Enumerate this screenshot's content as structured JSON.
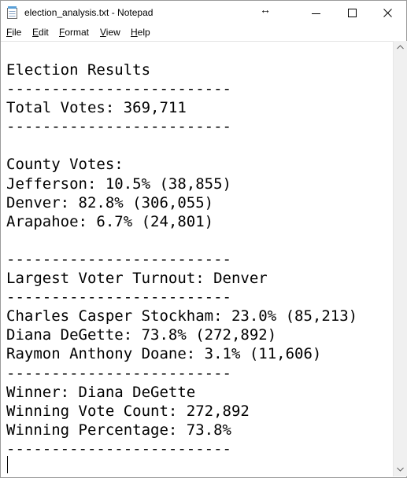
{
  "window": {
    "title": "election_analysis.txt - Notepad",
    "icons": {
      "app": "notepad-icon",
      "minimize": "minimize-icon",
      "maximize": "maximize-icon",
      "close": "close-icon",
      "resize": "resize-cursor-icon"
    },
    "resize_glyph": "↔"
  },
  "menu": {
    "file": {
      "accel": "F",
      "rest": "ile"
    },
    "edit": {
      "accel": "E",
      "rest": "dit"
    },
    "format": {
      "accel": "F",
      "rest": "ormat",
      "prefix": ""
    },
    "view": {
      "accel": "V",
      "rest": "iew"
    },
    "help": {
      "accel": "H",
      "rest": "elp"
    }
  },
  "document": {
    "lines": [
      "Election Results",
      "-------------------------",
      "Total Votes: 369,711",
      "-------------------------",
      "",
      "County Votes:",
      "Jefferson: 10.5% (38,855)",
      "Denver: 82.8% (306,055)",
      "Arapahoe: 6.7% (24,801)",
      "",
      "-------------------------",
      "Largest Voter Turnout: Denver",
      "-------------------------",
      "Charles Casper Stockham: 23.0% (85,213)",
      "Diana DeGette: 73.8% (272,892)",
      "Raymon Anthony Doane: 3.1% (11,606)",
      "-------------------------",
      "Winner: Diana DeGette",
      "Winning Vote Count: 272,892",
      "Winning Percentage: 73.8%",
      "-------------------------"
    ]
  },
  "scrollbar": {
    "up_icon": "scroll-up-arrow-icon",
    "down_icon": "scroll-down-arrow-icon"
  }
}
